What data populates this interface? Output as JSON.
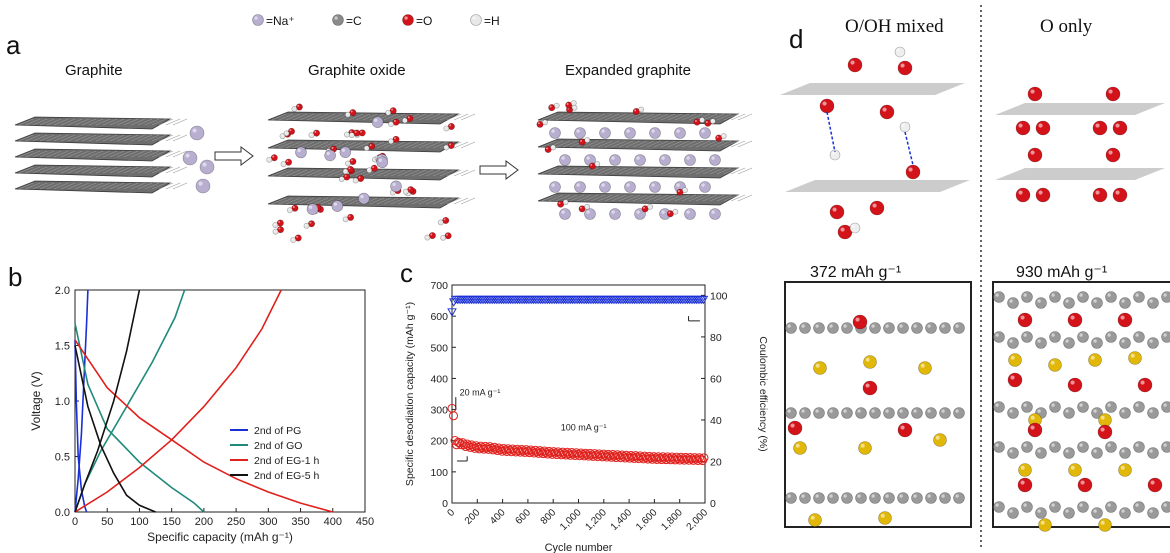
{
  "legend_top": [
    {
      "symbol": "=Na⁺",
      "color": "#b8aed0"
    },
    {
      "symbol": "=C",
      "color": "#8a8a8a"
    },
    {
      "symbol": "=O",
      "color": "#d4121a"
    },
    {
      "symbol": "=H",
      "color": "#e8e8e8"
    }
  ],
  "panel_a": {
    "label": "a",
    "titles": [
      "Graphite",
      "Graphite oxide",
      "Expanded graphite"
    ]
  },
  "panel_b": {
    "label": "b"
  },
  "panel_c": {
    "label": "c"
  },
  "panel_d": {
    "label": "d",
    "col_titles": [
      "O/OH mixed",
      "O only"
    ],
    "capacities": [
      "372 mAh g⁻¹",
      "930 mAh g⁻¹"
    ]
  },
  "chart_data": [
    {
      "type": "line",
      "xlabel": "Specific capacity (mAh g⁻¹)",
      "ylabel": "Voltage (V)",
      "xlim": [
        0,
        450
      ],
      "ylim": [
        0,
        2.0
      ],
      "xticks": [
        "0",
        "50",
        "100",
        "150",
        "200",
        "250",
        "300",
        "350",
        "400",
        "450"
      ],
      "yticks": [
        "0.0",
        "0.5",
        "1.0",
        "1.5",
        "2.0"
      ],
      "legend_position": "bottom-right",
      "series": [
        {
          "name": "2nd of PG",
          "color": "#1a2fd6",
          "discharge": [
            [
              0,
              1.55
            ],
            [
              2,
              1.0
            ],
            [
              5,
              0.5
            ],
            [
              10,
              0.2
            ],
            [
              15,
              0.05
            ],
            [
              18,
              0.0
            ]
          ],
          "charge": [
            [
              0,
              0.0
            ],
            [
              5,
              0.3
            ],
            [
              10,
              0.7
            ],
            [
              14,
              1.2
            ],
            [
              18,
              1.7
            ],
            [
              20,
              2.0
            ]
          ]
        },
        {
          "name": "2nd of GO",
          "color": "#1f8a7a",
          "discharge": [
            [
              0,
              1.7
            ],
            [
              20,
              1.15
            ],
            [
              50,
              0.75
            ],
            [
              100,
              0.45
            ],
            [
              150,
              0.22
            ],
            [
              185,
              0.08
            ],
            [
              200,
              0.0
            ]
          ],
          "charge": [
            [
              0,
              0.0
            ],
            [
              15,
              0.25
            ],
            [
              40,
              0.55
            ],
            [
              80,
              0.95
            ],
            [
              120,
              1.35
            ],
            [
              155,
              1.75
            ],
            [
              170,
              2.0
            ]
          ]
        },
        {
          "name": "2nd of EG-1 h",
          "color": "#e0201c",
          "discharge": [
            [
              0,
              1.55
            ],
            [
              50,
              1.12
            ],
            [
              100,
              0.85
            ],
            [
              150,
              0.65
            ],
            [
              200,
              0.45
            ],
            [
              250,
              0.3
            ],
            [
              300,
              0.18
            ],
            [
              350,
              0.08
            ],
            [
              400,
              0.0
            ]
          ],
          "charge": [
            [
              0,
              0.0
            ],
            [
              50,
              0.18
            ],
            [
              100,
              0.4
            ],
            [
              150,
              0.65
            ],
            [
              200,
              0.95
            ],
            [
              250,
              1.3
            ],
            [
              290,
              1.65
            ],
            [
              320,
              2.0
            ]
          ]
        },
        {
          "name": "2nd of EG-5 h",
          "color": "#111111",
          "discharge": [
            [
              0,
              1.5
            ],
            [
              20,
              0.95
            ],
            [
              40,
              0.6
            ],
            [
              60,
              0.35
            ],
            [
              80,
              0.15
            ],
            [
              100,
              0.06
            ],
            [
              125,
              0.0
            ]
          ],
          "charge": [
            [
              0,
              0.0
            ],
            [
              15,
              0.25
            ],
            [
              35,
              0.55
            ],
            [
              60,
              1.0
            ],
            [
              80,
              1.45
            ],
            [
              100,
              2.0
            ]
          ]
        }
      ]
    },
    {
      "type": "scatter",
      "xlabel": "Cycle number",
      "ylabel": "Specific desodiation capacity (mAh g⁻¹)",
      "ylabel_right": "Coulombic efficiency (%)",
      "xlim": [
        0,
        2000
      ],
      "ylim": [
        0,
        700
      ],
      "ylim_right": [
        0,
        105
      ],
      "xticks": [
        "0",
        "200",
        "400",
        "600",
        "800",
        "1,000",
        "1,200",
        "1,400",
        "1,600",
        "1,800",
        "2,000"
      ],
      "yticks": [
        "0",
        "100",
        "200",
        "300",
        "400",
        "500",
        "600",
        "700"
      ],
      "yticks_right": [
        "0",
        "20",
        "40",
        "60",
        "80",
        "100"
      ],
      "annotations": [
        "20 mA g⁻¹",
        "100 mA g⁻¹"
      ],
      "series": [
        {
          "name": "Coulombic efficiency",
          "axis": "right",
          "color": "#1a2fd6",
          "marker": "triangle-down",
          "x": [
            0,
            10,
            20,
            30,
            50,
            100,
            200,
            300,
            400,
            500,
            600,
            700,
            800,
            900,
            1000,
            1100,
            1200,
            1300,
            1400,
            1500,
            1600,
            1700,
            1800,
            1900,
            2000
          ],
          "y": [
            93,
            97,
            99,
            99,
            99,
            99,
            99,
            99,
            99,
            99,
            99,
            99,
            99,
            99,
            99,
            99,
            99,
            99,
            99,
            99,
            99,
            99,
            99,
            99,
            99
          ]
        },
        {
          "name": "Desodiation capacity",
          "axis": "left",
          "color": "#e0201c",
          "marker": "circle",
          "x": [
            0,
            5,
            10,
            20,
            40,
            60,
            100,
            200,
            300,
            400,
            500,
            600,
            700,
            800,
            900,
            1000,
            1100,
            1200,
            1300,
            1400,
            1500,
            1600,
            1700,
            1800,
            1900,
            2000
          ],
          "y": [
            310,
            330,
            295,
            205,
            190,
            195,
            188,
            180,
            178,
            172,
            170,
            168,
            165,
            162,
            160,
            158,
            156,
            154,
            152,
            150,
            148,
            146,
            145,
            144,
            143,
            142
          ]
        }
      ]
    }
  ]
}
